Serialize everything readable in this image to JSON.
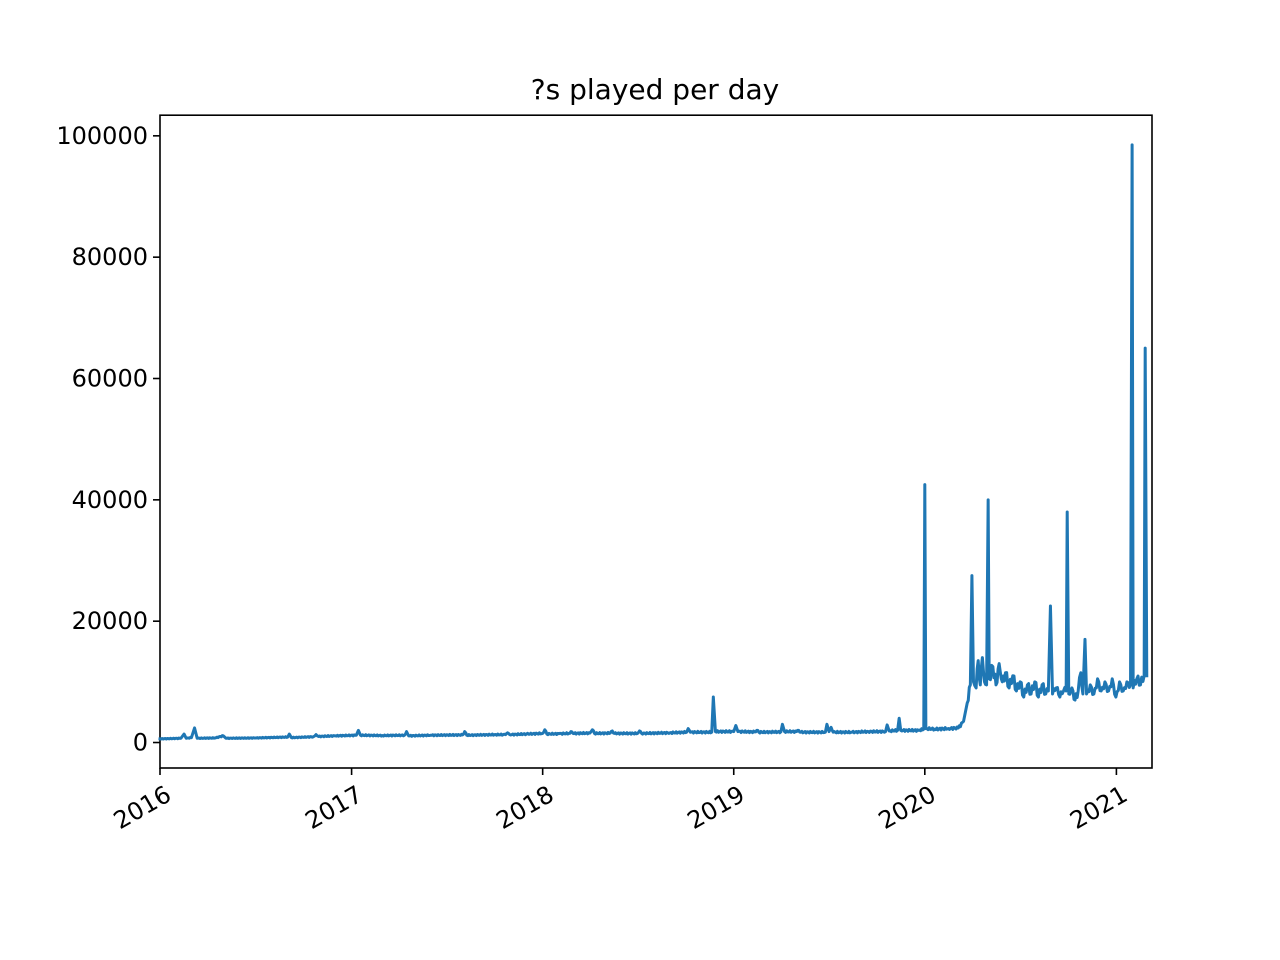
{
  "chart_data": {
    "type": "line",
    "title": "?s played per day",
    "xlabel": "",
    "ylabel": "",
    "x_axis_type": "date",
    "xlim": [
      "2016-01-01",
      "2021-03-10"
    ],
    "ylim": [
      -4200,
      103400
    ],
    "x_ticks": [
      {
        "value": "2016-01-01",
        "label": "2016"
      },
      {
        "value": "2017-01-01",
        "label": "2017"
      },
      {
        "value": "2018-01-01",
        "label": "2018"
      },
      {
        "value": "2019-01-01",
        "label": "2019"
      },
      {
        "value": "2020-01-01",
        "label": "2020"
      },
      {
        "value": "2021-01-01",
        "label": "2021"
      }
    ],
    "y_ticks": [
      {
        "value": 0,
        "label": "0"
      },
      {
        "value": 20000,
        "label": "20000"
      },
      {
        "value": 40000,
        "label": "40000"
      },
      {
        "value": 60000,
        "label": "60000"
      },
      {
        "value": 80000,
        "label": "80000"
      },
      {
        "value": 100000,
        "label": "100000"
      }
    ],
    "grid": false,
    "legend": "none",
    "series": [
      {
        "color": "#1f77b4",
        "points": [
          [
            "2016-01-01",
            600
          ],
          [
            "2016-02-10",
            700
          ],
          [
            "2016-02-16",
            1400
          ],
          [
            "2016-02-20",
            700
          ],
          [
            "2016-03-01",
            800
          ],
          [
            "2016-03-07",
            2400
          ],
          [
            "2016-03-12",
            700
          ],
          [
            "2016-04-15",
            750
          ],
          [
            "2016-05-01",
            1100
          ],
          [
            "2016-05-06",
            700
          ],
          [
            "2016-07-01",
            750
          ],
          [
            "2016-09-01",
            900
          ],
          [
            "2016-09-04",
            1400
          ],
          [
            "2016-09-08",
            800
          ],
          [
            "2016-10-20",
            950
          ],
          [
            "2016-10-25",
            1300
          ],
          [
            "2016-10-30",
            1000
          ],
          [
            "2016-12-01",
            1100
          ],
          [
            "2017-01-10",
            1200
          ],
          [
            "2017-01-14",
            2000
          ],
          [
            "2017-01-18",
            1200
          ],
          [
            "2017-03-01",
            1150
          ],
          [
            "2017-04-12",
            1200
          ],
          [
            "2017-04-16",
            1800
          ],
          [
            "2017-04-20",
            1100
          ],
          [
            "2017-06-01",
            1200
          ],
          [
            "2017-08-01",
            1250
          ],
          [
            "2017-08-05",
            1800
          ],
          [
            "2017-08-09",
            1200
          ],
          [
            "2017-10-01",
            1300
          ],
          [
            "2017-10-22",
            1300
          ],
          [
            "2017-10-26",
            1600
          ],
          [
            "2017-10-30",
            1300
          ],
          [
            "2017-12-01",
            1400
          ],
          [
            "2018-01-01",
            1500
          ],
          [
            "2018-01-05",
            2100
          ],
          [
            "2018-01-09",
            1400
          ],
          [
            "2018-02-01",
            1450
          ],
          [
            "2018-02-20",
            1500
          ],
          [
            "2018-02-24",
            1800
          ],
          [
            "2018-02-28",
            1500
          ],
          [
            "2018-04-01",
            1550
          ],
          [
            "2018-04-06",
            2100
          ],
          [
            "2018-04-10",
            1500
          ],
          [
            "2018-05-10",
            1550
          ],
          [
            "2018-05-14",
            1900
          ],
          [
            "2018-05-18",
            1500
          ],
          [
            "2018-07-01",
            1500
          ],
          [
            "2018-07-05",
            1900
          ],
          [
            "2018-07-09",
            1500
          ],
          [
            "2018-09-01",
            1600
          ],
          [
            "2018-10-03",
            1700
          ],
          [
            "2018-10-06",
            2300
          ],
          [
            "2018-10-10",
            1700
          ],
          [
            "2018-11-20",
            1700
          ],
          [
            "2018-11-23",
            7500
          ],
          [
            "2018-11-27",
            1800
          ],
          [
            "2019-01-01",
            1800
          ],
          [
            "2019-01-05",
            2800
          ],
          [
            "2019-01-09",
            1800
          ],
          [
            "2019-02-10",
            1750
          ],
          [
            "2019-02-14",
            2000
          ],
          [
            "2019-02-18",
            1700
          ],
          [
            "2019-04-01",
            1750
          ],
          [
            "2019-04-04",
            3000
          ],
          [
            "2019-04-08",
            1800
          ],
          [
            "2019-05-01",
            1800
          ],
          [
            "2019-05-05",
            2000
          ],
          [
            "2019-05-09",
            1700
          ],
          [
            "2019-06-25",
            1700
          ],
          [
            "2019-06-28",
            3000
          ],
          [
            "2019-07-02",
            1800
          ],
          [
            "2019-07-06",
            2500
          ],
          [
            "2019-07-10",
            1700
          ],
          [
            "2019-08-15",
            1700
          ],
          [
            "2019-09-15",
            1800
          ],
          [
            "2019-10-18",
            1800
          ],
          [
            "2019-10-21",
            2900
          ],
          [
            "2019-10-25",
            1900
          ],
          [
            "2019-11-10",
            2000
          ],
          [
            "2019-11-13",
            4000
          ],
          [
            "2019-11-16",
            2000
          ],
          [
            "2019-12-20",
            2000
          ],
          [
            "2019-12-30",
            2200
          ],
          [
            "2020-01-01",
            42500
          ],
          [
            "2020-01-03",
            2300
          ],
          [
            "2020-01-20",
            2200
          ],
          [
            "2020-02-15",
            2300
          ],
          [
            "2020-03-05",
            2400
          ],
          [
            "2020-03-15",
            3500
          ],
          [
            "2020-03-22",
            6500
          ],
          [
            "2020-03-28",
            9500
          ],
          [
            "2020-03-31",
            27500
          ],
          [
            "2020-04-03",
            10000
          ],
          [
            "2020-04-08",
            9000
          ],
          [
            "2020-04-12",
            13500
          ],
          [
            "2020-04-16",
            9500
          ],
          [
            "2020-04-20",
            14000
          ],
          [
            "2020-04-24",
            10000
          ],
          [
            "2020-04-28",
            9500
          ],
          [
            "2020-05-01",
            40000
          ],
          [
            "2020-05-03",
            10500
          ],
          [
            "2020-05-10",
            12500
          ],
          [
            "2020-05-16",
            9500
          ],
          [
            "2020-05-22",
            13000
          ],
          [
            "2020-05-28",
            10000
          ],
          [
            "2020-06-03",
            11500
          ],
          [
            "2020-06-10",
            9000
          ],
          [
            "2020-06-17",
            11000
          ],
          [
            "2020-06-24",
            8500
          ],
          [
            "2020-07-01",
            10000
          ],
          [
            "2020-07-08",
            7500
          ],
          [
            "2020-07-15",
            9500
          ],
          [
            "2020-07-22",
            8000
          ],
          [
            "2020-07-29",
            10000
          ],
          [
            "2020-08-05",
            7500
          ],
          [
            "2020-08-12",
            9500
          ],
          [
            "2020-08-19",
            8000
          ],
          [
            "2020-08-24",
            8500
          ],
          [
            "2020-08-28",
            22500
          ],
          [
            "2020-09-01",
            8000
          ],
          [
            "2020-09-08",
            9000
          ],
          [
            "2020-09-15",
            7500
          ],
          [
            "2020-09-22",
            8500
          ],
          [
            "2020-09-27",
            8500
          ],
          [
            "2020-09-29",
            38000
          ],
          [
            "2020-10-02",
            8000
          ],
          [
            "2020-10-08",
            9000
          ],
          [
            "2020-10-14",
            7000
          ],
          [
            "2020-10-20",
            8500
          ],
          [
            "2020-10-25",
            11500
          ],
          [
            "2020-10-29",
            8000
          ],
          [
            "2020-11-02",
            17000
          ],
          [
            "2020-11-05",
            8000
          ],
          [
            "2020-11-12",
            9500
          ],
          [
            "2020-11-19",
            8000
          ],
          [
            "2020-11-26",
            10500
          ],
          [
            "2020-12-03",
            8500
          ],
          [
            "2020-12-10",
            10000
          ],
          [
            "2020-12-17",
            8500
          ],
          [
            "2020-12-24",
            10500
          ],
          [
            "2020-12-31",
            7500
          ],
          [
            "2021-01-07",
            10000
          ],
          [
            "2021-01-14",
            8500
          ],
          [
            "2021-01-21",
            10000
          ],
          [
            "2021-01-28",
            9500
          ],
          [
            "2021-01-31",
            98500
          ],
          [
            "2021-02-02",
            9000
          ],
          [
            "2021-02-09",
            10500
          ],
          [
            "2021-02-16",
            9500
          ],
          [
            "2021-02-23",
            11000
          ],
          [
            "2021-02-25",
            65000
          ],
          [
            "2021-02-28",
            11000
          ]
        ]
      }
    ]
  }
}
